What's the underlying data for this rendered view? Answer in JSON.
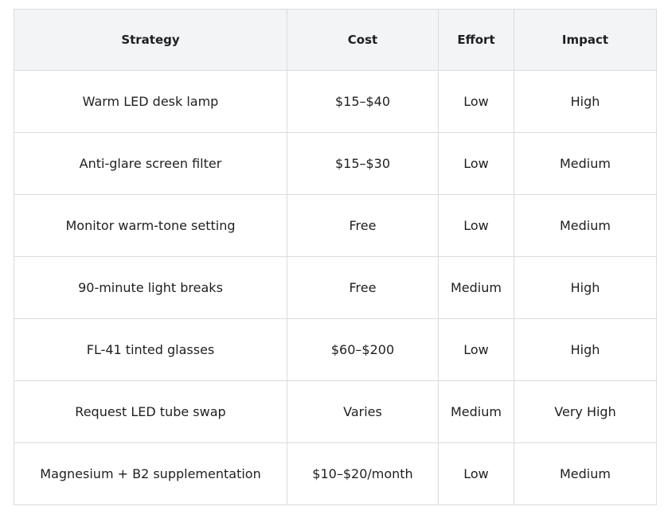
{
  "table": {
    "headers": [
      "Strategy",
      "Cost",
      "Effort",
      "Impact"
    ],
    "rows": [
      [
        "Warm LED desk lamp",
        "$15–$40",
        "Low",
        "High"
      ],
      [
        "Anti-glare screen filter",
        "$15–$30",
        "Low",
        "Medium"
      ],
      [
        "Monitor warm-tone setting",
        "Free",
        "Low",
        "Medium"
      ],
      [
        "90-minute light breaks",
        "Free",
        "Medium",
        "High"
      ],
      [
        "FL-41 tinted glasses",
        "$60–$200",
        "Low",
        "High"
      ],
      [
        "Request LED tube swap",
        "Varies",
        "Medium",
        "Very High"
      ],
      [
        "Magnesium + B2 supplementation",
        "$10–$20/month",
        "Low",
        "Medium"
      ]
    ]
  }
}
